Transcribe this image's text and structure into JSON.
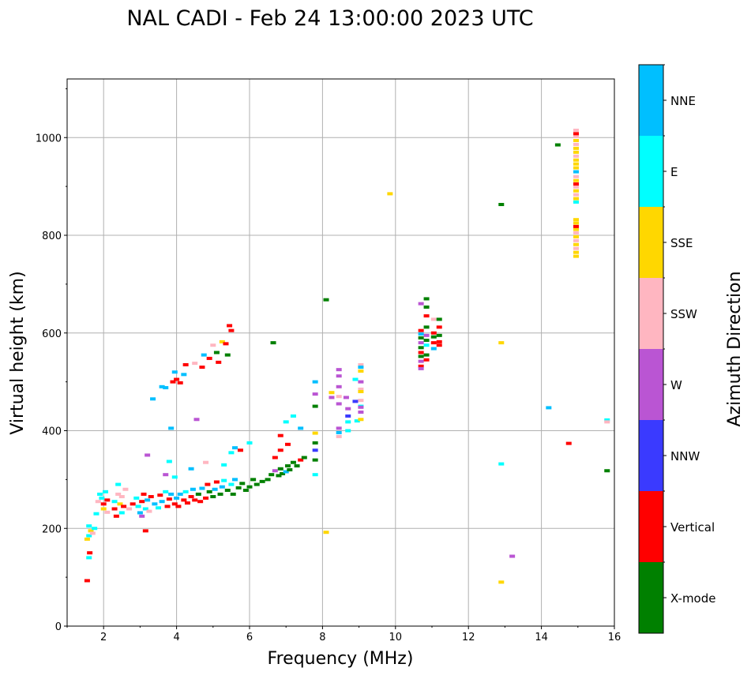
{
  "chart_data": {
    "type": "scatter",
    "title": "NAL CADI - Feb 24 13:00:00 2023 UTC",
    "xlabel": "Frequency (MHz)",
    "ylabel": "Virtual height (km)",
    "xlim": [
      1,
      16
    ],
    "ylim": [
      0,
      1120
    ],
    "xticks": [
      2,
      4,
      6,
      8,
      10,
      12,
      14,
      16
    ],
    "yticks": [
      0,
      200,
      400,
      600,
      800,
      1000
    ],
    "grid": true,
    "colorbar": {
      "label": "Azimuth Direction",
      "categories": [
        "X-mode",
        "Vertical",
        "NNW",
        "W",
        "SSW",
        "SSE",
        "E",
        "NNE"
      ],
      "colors": [
        "#008000",
        "#ff0000",
        "#3a3aff",
        "#ba55d3",
        "#ffb6c1",
        "#ffd700",
        "#00ffff",
        "#00bfff"
      ]
    },
    "points_format": "[frequency_MHz, virtual_height_km, azimuth_category_index]",
    "points": [
      [
        1.55,
        93,
        1
      ],
      [
        1.6,
        140,
        6
      ],
      [
        1.62,
        150,
        1
      ],
      [
        1.6,
        185,
        6
      ],
      [
        1.65,
        195,
        5
      ],
      [
        1.6,
        205,
        6
      ],
      [
        1.7,
        190,
        4
      ],
      [
        1.55,
        178,
        5
      ],
      [
        1.75,
        200,
        6
      ],
      [
        1.8,
        230,
        6
      ],
      [
        1.85,
        255,
        4
      ],
      [
        1.9,
        270,
        6
      ],
      [
        1.95,
        262,
        6
      ],
      [
        2.0,
        250,
        1
      ],
      [
        2.0,
        240,
        5
      ],
      [
        2.05,
        275,
        6
      ],
      [
        2.1,
        233,
        4
      ],
      [
        2.1,
        258,
        1
      ],
      [
        2.3,
        240,
        1
      ],
      [
        2.35,
        225,
        1
      ],
      [
        2.3,
        255,
        6
      ],
      [
        2.4,
        270,
        4
      ],
      [
        2.45,
        250,
        5
      ],
      [
        2.5,
        232,
        6
      ],
      [
        2.5,
        265,
        4
      ],
      [
        2.55,
        245,
        1
      ],
      [
        2.6,
        280,
        4
      ],
      [
        2.4,
        290,
        6
      ],
      [
        2.7,
        240,
        4
      ],
      [
        2.8,
        250,
        1
      ],
      [
        2.9,
        262,
        6
      ],
      [
        2.95,
        245,
        6
      ],
      [
        3.0,
        232,
        7
      ],
      [
        3.05,
        255,
        1
      ],
      [
        3.1,
        270,
        1
      ],
      [
        3.15,
        240,
        6
      ],
      [
        3.2,
        258,
        7
      ],
      [
        3.25,
        235,
        4
      ],
      [
        3.15,
        195,
        1
      ],
      [
        3.05,
        225,
        3
      ],
      [
        3.3,
        265,
        1
      ],
      [
        3.4,
        250,
        7
      ],
      [
        3.5,
        242,
        6
      ],
      [
        3.55,
        268,
        1
      ],
      [
        3.6,
        255,
        7
      ],
      [
        3.7,
        275,
        6
      ],
      [
        3.75,
        245,
        1
      ],
      [
        3.8,
        260,
        1
      ],
      [
        3.85,
        270,
        7
      ],
      [
        3.95,
        250,
        1
      ],
      [
        4.0,
        262,
        7
      ],
      [
        4.05,
        245,
        1
      ],
      [
        4.1,
        270,
        7
      ],
      [
        4.2,
        258,
        1
      ],
      [
        4.25,
        275,
        6
      ],
      [
        4.3,
        252,
        1
      ],
      [
        4.4,
        265,
        1
      ],
      [
        4.45,
        280,
        7
      ],
      [
        4.5,
        258,
        1
      ],
      [
        4.6,
        270,
        0
      ],
      [
        4.65,
        255,
        1
      ],
      [
        4.7,
        282,
        7
      ],
      [
        4.8,
        262,
        1
      ],
      [
        4.85,
        290,
        1
      ],
      [
        4.9,
        275,
        0
      ],
      [
        5.0,
        265,
        0
      ],
      [
        5.05,
        280,
        7
      ],
      [
        5.1,
        295,
        1
      ],
      [
        5.2,
        270,
        0
      ],
      [
        5.25,
        285,
        7
      ],
      [
        5.3,
        298,
        6
      ],
      [
        5.4,
        278,
        0
      ],
      [
        5.5,
        290,
        6
      ],
      [
        5.55,
        270,
        0
      ],
      [
        5.6,
        300,
        7
      ],
      [
        5.7,
        283,
        0
      ],
      [
        5.8,
        292,
        0
      ],
      [
        5.9,
        278,
        0
      ],
      [
        6.0,
        285,
        0
      ],
      [
        6.1,
        300,
        0
      ],
      [
        6.2,
        290,
        0
      ],
      [
        6.35,
        296,
        0
      ],
      [
        6.5,
        300,
        0
      ],
      [
        6.6,
        310,
        0
      ],
      [
        6.7,
        318,
        3
      ],
      [
        6.8,
        308,
        0
      ],
      [
        6.85,
        322,
        0
      ],
      [
        6.9,
        312,
        0
      ],
      [
        7.0,
        316,
        7
      ],
      [
        7.05,
        328,
        0
      ],
      [
        7.1,
        320,
        0
      ],
      [
        7.2,
        335,
        0
      ],
      [
        7.3,
        328,
        0
      ],
      [
        7.4,
        340,
        1
      ],
      [
        7.5,
        345,
        0
      ],
      [
        5.3,
        330,
        6
      ],
      [
        5.5,
        355,
        6
      ],
      [
        5.6,
        365,
        7
      ],
      [
        6.0,
        375,
        6
      ],
      [
        6.7,
        345,
        1
      ],
      [
        6.85,
        360,
        1
      ],
      [
        6.85,
        390,
        1
      ],
      [
        7.05,
        372,
        1
      ],
      [
        7.2,
        430,
        6
      ],
      [
        7.4,
        405,
        7
      ],
      [
        7.0,
        418,
        6
      ],
      [
        5.75,
        360,
        1
      ],
      [
        4.8,
        335,
        4
      ],
      [
        4.4,
        322,
        7
      ],
      [
        3.95,
        305,
        6
      ],
      [
        3.8,
        337,
        6
      ],
      [
        3.2,
        350,
        3
      ],
      [
        3.7,
        310,
        3
      ],
      [
        3.85,
        405,
        7
      ],
      [
        4.55,
        423,
        3
      ],
      [
        3.35,
        465,
        7
      ],
      [
        7.8,
        310,
        6
      ],
      [
        7.8,
        340,
        0
      ],
      [
        7.8,
        360,
        2
      ],
      [
        7.8,
        375,
        0
      ],
      [
        7.8,
        395,
        5
      ],
      [
        7.8,
        450,
        0
      ],
      [
        7.8,
        475,
        3
      ],
      [
        7.8,
        500,
        7
      ],
      [
        3.6,
        490,
        7
      ],
      [
        3.7,
        488,
        7
      ],
      [
        3.9,
        500,
        1
      ],
      [
        4.0,
        505,
        1
      ],
      [
        3.95,
        520,
        7
      ],
      [
        4.1,
        498,
        1
      ],
      [
        4.25,
        535,
        1
      ],
      [
        4.2,
        515,
        7
      ],
      [
        4.5,
        538,
        4
      ],
      [
        4.7,
        530,
        1
      ],
      [
        4.75,
        555,
        7
      ],
      [
        4.9,
        548,
        1
      ],
      [
        5.1,
        560,
        0
      ],
      [
        5.0,
        575,
        4
      ],
      [
        5.15,
        540,
        1
      ],
      [
        5.25,
        582,
        5
      ],
      [
        5.35,
        578,
        1
      ],
      [
        5.4,
        555,
        0
      ],
      [
        5.45,
        615,
        1
      ],
      [
        5.5,
        605,
        1
      ],
      [
        6.65,
        580,
        0
      ],
      [
        8.1,
        668,
        0
      ],
      [
        8.25,
        478,
        5
      ],
      [
        8.25,
        468,
        3
      ],
      [
        8.45,
        525,
        3
      ],
      [
        8.45,
        512,
        3
      ],
      [
        8.45,
        490,
        3
      ],
      [
        8.45,
        470,
        4
      ],
      [
        8.45,
        455,
        3
      ],
      [
        8.45,
        405,
        3
      ],
      [
        8.45,
        396,
        7
      ],
      [
        8.45,
        388,
        4
      ],
      [
        8.65,
        468,
        3
      ],
      [
        8.7,
        445,
        3
      ],
      [
        8.7,
        430,
        2
      ],
      [
        8.7,
        418,
        6
      ],
      [
        8.7,
        400,
        6
      ],
      [
        8.9,
        505,
        6
      ],
      [
        8.9,
        460,
        2
      ],
      [
        8.95,
        420,
        6
      ],
      [
        9.05,
        535,
        4
      ],
      [
        9.05,
        530,
        7
      ],
      [
        9.05,
        522,
        5
      ],
      [
        9.05,
        500,
        3
      ],
      [
        9.05,
        485,
        4
      ],
      [
        9.05,
        480,
        5
      ],
      [
        9.05,
        462,
        4
      ],
      [
        9.05,
        450,
        6
      ],
      [
        9.05,
        448,
        3
      ],
      [
        9.05,
        438,
        3
      ],
      [
        9.05,
        423,
        5
      ],
      [
        10.7,
        660,
        3
      ],
      [
        10.7,
        605,
        1
      ],
      [
        10.7,
        598,
        7
      ],
      [
        10.7,
        590,
        0
      ],
      [
        10.7,
        580,
        3
      ],
      [
        10.7,
        570,
        0
      ],
      [
        10.7,
        560,
        1
      ],
      [
        10.7,
        552,
        0
      ],
      [
        10.7,
        542,
        3
      ],
      [
        10.7,
        532,
        1
      ],
      [
        10.7,
        527,
        3
      ],
      [
        10.85,
        670,
        0
      ],
      [
        10.85,
        653,
        0
      ],
      [
        10.85,
        635,
        1
      ],
      [
        10.85,
        612,
        0
      ],
      [
        10.85,
        595,
        3
      ],
      [
        10.85,
        585,
        0
      ],
      [
        10.85,
        575,
        6
      ],
      [
        10.85,
        555,
        0
      ],
      [
        10.85,
        545,
        1
      ],
      [
        11.05,
        628,
        4
      ],
      [
        11.05,
        600,
        1
      ],
      [
        11.05,
        592,
        0
      ],
      [
        11.05,
        580,
        1
      ],
      [
        11.05,
        568,
        7
      ],
      [
        11.2,
        628,
        0
      ],
      [
        11.2,
        612,
        1
      ],
      [
        11.2,
        595,
        0
      ],
      [
        11.2,
        582,
        1
      ],
      [
        11.2,
        575,
        1
      ],
      [
        9.85,
        885,
        5
      ],
      [
        12.9,
        863,
        0
      ],
      [
        14.45,
        985,
        0
      ],
      [
        12.9,
        580,
        5
      ],
      [
        14.2,
        447,
        7
      ],
      [
        15.8,
        422,
        6
      ],
      [
        15.8,
        418,
        4
      ],
      [
        14.75,
        374,
        1
      ],
      [
        15.8,
        318,
        0
      ],
      [
        12.9,
        332,
        6
      ],
      [
        13.2,
        143,
        3
      ],
      [
        12.9,
        90,
        5
      ],
      [
        8.1,
        192,
        5
      ],
      [
        14.95,
        757,
        5
      ],
      [
        14.95,
        765,
        5
      ],
      [
        14.95,
        773,
        4
      ],
      [
        14.95,
        781,
        5
      ],
      [
        14.95,
        789,
        4
      ],
      [
        14.95,
        797,
        5
      ],
      [
        14.95,
        805,
        4
      ],
      [
        14.95,
        812,
        5
      ],
      [
        14.95,
        818,
        1
      ],
      [
        14.95,
        825,
        5
      ],
      [
        14.95,
        832,
        5
      ],
      [
        14.95,
        868,
        6
      ],
      [
        14.95,
        875,
        5
      ],
      [
        14.95,
        883,
        4
      ],
      [
        14.95,
        891,
        5
      ],
      [
        14.95,
        899,
        4
      ],
      [
        14.95,
        905,
        1
      ],
      [
        14.95,
        912,
        5
      ],
      [
        14.95,
        920,
        4
      ],
      [
        14.95,
        930,
        7
      ],
      [
        14.95,
        938,
        5
      ],
      [
        14.95,
        946,
        5
      ],
      [
        14.95,
        954,
        5
      ],
      [
        14.95,
        962,
        4
      ],
      [
        14.95,
        970,
        5
      ],
      [
        14.95,
        978,
        5
      ],
      [
        14.95,
        986,
        4
      ],
      [
        14.95,
        994,
        5
      ],
      [
        14.95,
        1002,
        4
      ],
      [
        14.95,
        1008,
        1
      ],
      [
        14.95,
        1015,
        4
      ]
    ]
  }
}
